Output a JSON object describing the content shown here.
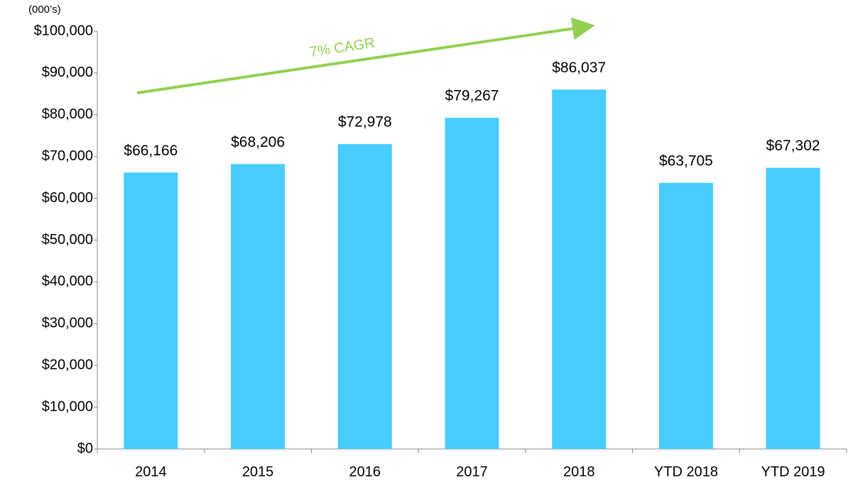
{
  "chart_data": {
    "type": "bar",
    "unit_label": "(000’s)",
    "annotation": "7% CAGR",
    "categories": [
      "2014",
      "2015",
      "2016",
      "2017",
      "2018",
      "YTD 2018",
      "YTD 2019"
    ],
    "values": [
      66166,
      68206,
      72978,
      79267,
      86037,
      63705,
      67302
    ],
    "value_labels": [
      "$66,166",
      "$68,206",
      "$72,978",
      "$79,267",
      "$86,037",
      "$63,705",
      "$67,302"
    ],
    "color": "#47cdfe",
    "ylim": [
      0,
      100000
    ],
    "yticks": [
      {
        "value": 0,
        "label": "$0"
      },
      {
        "value": 10000,
        "label": "$10,000"
      },
      {
        "value": 20000,
        "label": "$20,000"
      },
      {
        "value": 30000,
        "label": "$30,000"
      },
      {
        "value": 40000,
        "label": "$40,000"
      },
      {
        "value": 50000,
        "label": "$50,000"
      },
      {
        "value": 60000,
        "label": "$60,000"
      },
      {
        "value": 70000,
        "label": "$70,000"
      },
      {
        "value": 80000,
        "label": "$80,000"
      },
      {
        "value": 90000,
        "label": "$90,000"
      },
      {
        "value": 100000,
        "label": "$100,000"
      }
    ],
    "grid": false
  }
}
